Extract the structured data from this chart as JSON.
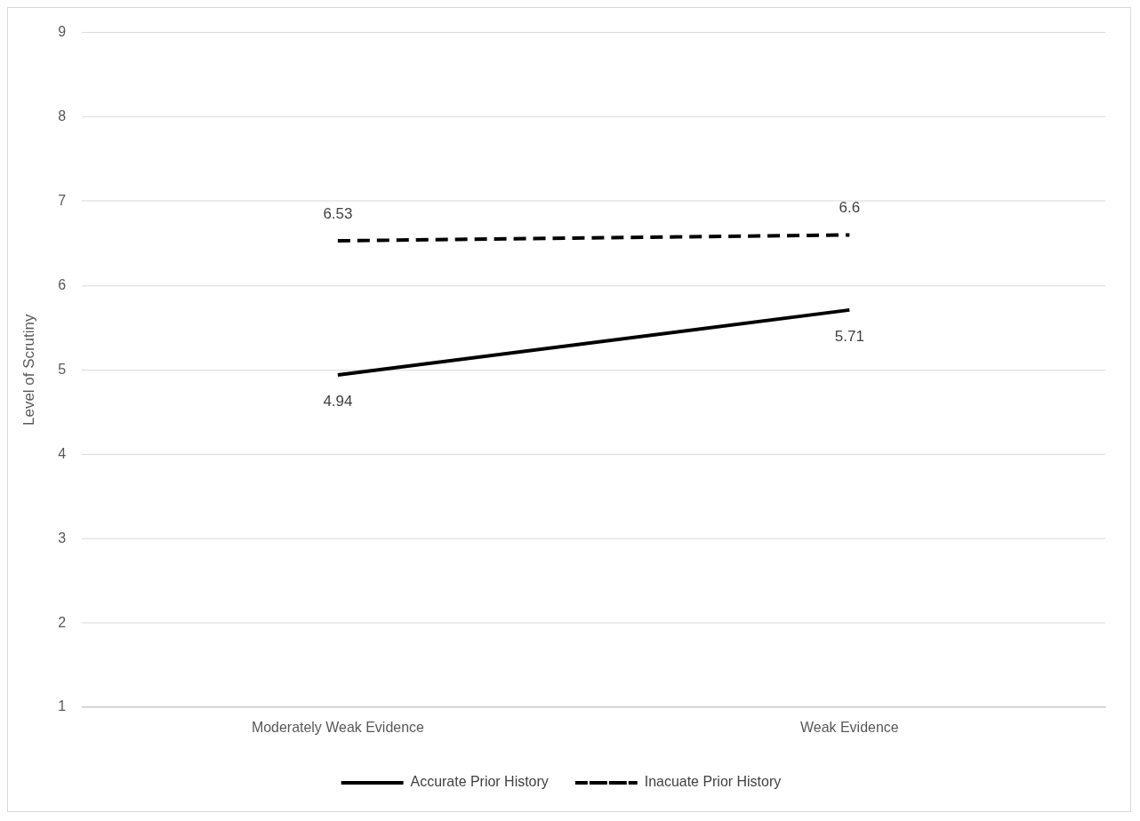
{
  "chart_data": {
    "type": "line",
    "ylabel": "Level of Scrutiny",
    "categories": [
      "Moderately Weak Evidence",
      "Weak Evidence"
    ],
    "series": [
      {
        "name": "Accurate Prior History",
        "color": "#000000",
        "values": [
          4.94,
          5.71
        ],
        "line_style": "solid"
      },
      {
        "name": "Inacuate Prior History",
        "color": "#000000",
        "values": [
          6.53,
          6.6
        ],
        "line_style": "dashed"
      }
    ],
    "ylim": [
      1,
      9
    ],
    "yticks": [
      1,
      2,
      3,
      4,
      5,
      6,
      7,
      8,
      9
    ],
    "grid": "y",
    "legend": "bottom",
    "marker": "none",
    "data_labels": true
  }
}
